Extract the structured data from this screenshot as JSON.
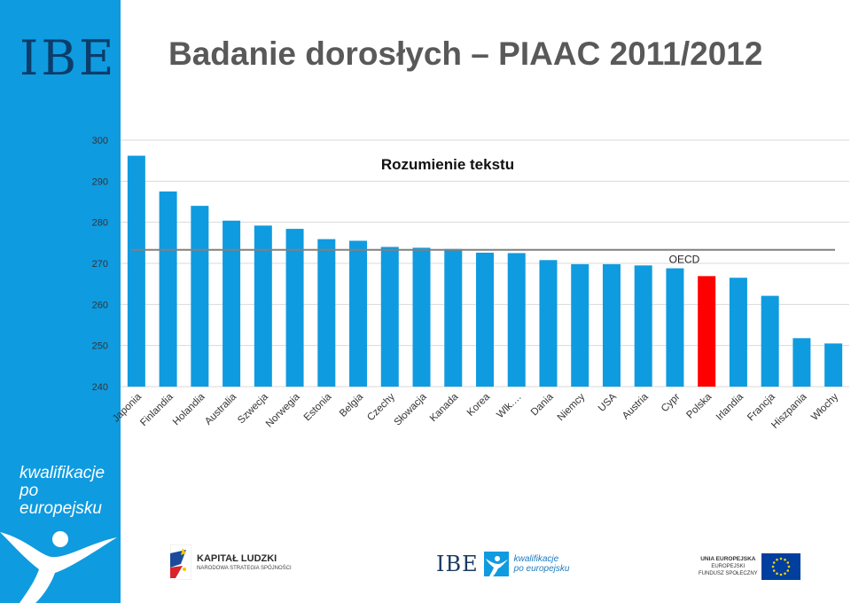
{
  "header": {
    "title": "Badanie dorosłych – PIAAC 2011/2012"
  },
  "sidebar": {
    "logo": "IBE",
    "tagline_line1": "kwalifikacje",
    "tagline_line2": "po europejsku",
    "figure_icon": "stylized-person-icon"
  },
  "colors": {
    "bar": "#0f9be0",
    "highlight": "#ff0000",
    "oecd_line": "#808080",
    "sidebar": "#0f9be0"
  },
  "chart_data": {
    "type": "bar",
    "title": "Rozumienie tekstu",
    "categories": [
      "Japonia",
      "Finlandia",
      "Holandia",
      "Australia",
      "Szwecja",
      "Norwegia",
      "Estonia",
      "Belgia",
      "Czechy",
      "Słowacja",
      "Kanada",
      "Korea",
      "Wlk.…",
      "Dania",
      "Niemcy",
      "USA",
      "Austria",
      "Cypr",
      "Polska",
      "Irlandia",
      "Francja",
      "Hiszpania",
      "Włochy"
    ],
    "values": [
      296.2,
      287.5,
      284.0,
      280.4,
      279.2,
      278.4,
      275.9,
      275.5,
      274.0,
      273.8,
      273.5,
      272.6,
      272.5,
      270.8,
      269.8,
      269.8,
      269.5,
      268.8,
      266.9,
      266.5,
      262.1,
      251.8,
      250.5
    ],
    "highlight_category": "Polska",
    "reference_line": {
      "label": "OECD",
      "value": 273.3
    },
    "ylim": [
      240,
      300
    ],
    "yticks": [
      240,
      250,
      260,
      270,
      280,
      290,
      300
    ],
    "grid": true,
    "legend": "none"
  },
  "footer": {
    "kapital_ludzki_line1": "KAPITAŁ LUDZKI",
    "kapital_ludzki_line2": "NARODOWA STRATEGIA SPÓJNOŚCI",
    "ibe_logo": "IBE",
    "kpe_line1": "kwalifikacje",
    "kpe_line2": "po europejsku",
    "eu_line1": "UNIA EUROPEJSKA",
    "eu_line2": "EUROPEJSKI",
    "eu_line3": "FUNDUSZ SPOŁECZNY"
  }
}
